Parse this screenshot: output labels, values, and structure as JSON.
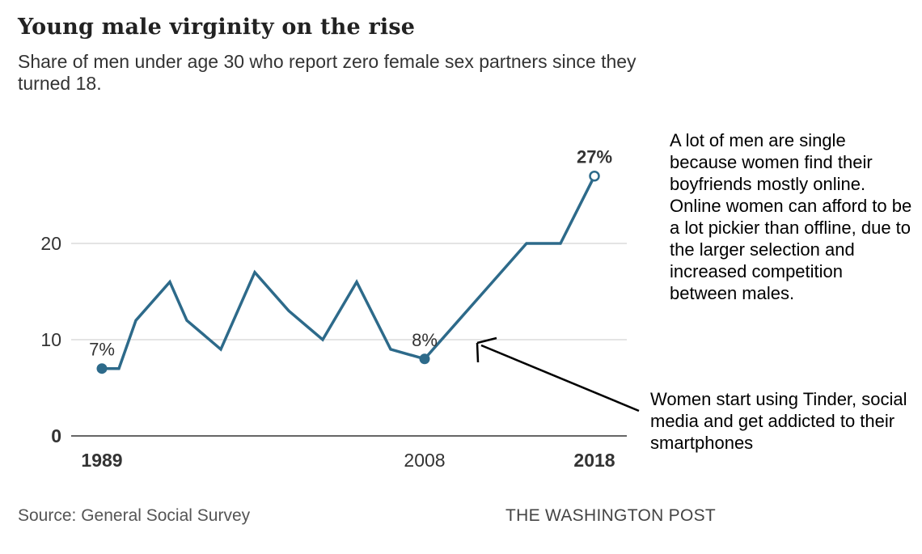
{
  "title": "Young male virginity on the rise",
  "subtitle": "Share of men under age 30 who report zero female sex partners since they turned 18.",
  "source": "Source: General Social Survey",
  "publisher": "THE WASHINGTON POST",
  "side_note": "A lot of men are single because women find their boyfriends mostly online. Online women can afford to be a lot pickier than offline, due to the larger selection and increased competition between males.",
  "arrow_annotation": "Women start using Tinder, social media and get addicted to their smartphones",
  "colors": {
    "line": "#2d6a8a",
    "grid": "#d4d4d4",
    "axis": "#333333"
  },
  "chart_data": {
    "type": "line",
    "title": "Young male virginity on the rise",
    "subtitle": "Share of men under age 30 who report zero female sex partners since they turned 18.",
    "xlabel": "",
    "ylabel": "",
    "x": [
      1989,
      1990,
      1991,
      1993,
      1994,
      1996,
      1998,
      2000,
      2002,
      2004,
      2006,
      2008,
      2010,
      2012,
      2014,
      2016,
      2018
    ],
    "values": [
      7,
      7,
      12,
      16,
      12,
      9,
      17,
      13,
      10,
      16,
      9,
      8,
      12,
      16,
      20,
      20,
      27
    ],
    "ylim": [
      0,
      27
    ],
    "yticks": [
      0,
      10,
      20
    ],
    "ytick_labels": [
      "0",
      "10",
      "20"
    ],
    "xticks": [
      1989,
      2008,
      2018
    ],
    "xtick_labels": [
      "1989",
      "2008",
      "2018"
    ],
    "xtick_bold": [
      true,
      false,
      true
    ],
    "grid": true,
    "point_labels": [
      {
        "x": 1989,
        "y": 7,
        "label": "7%",
        "marker": "filled"
      },
      {
        "x": 2008,
        "y": 8,
        "label": "8%",
        "marker": "filled"
      },
      {
        "x": 2018,
        "y": 27,
        "label": "27%",
        "marker": "open"
      }
    ]
  }
}
